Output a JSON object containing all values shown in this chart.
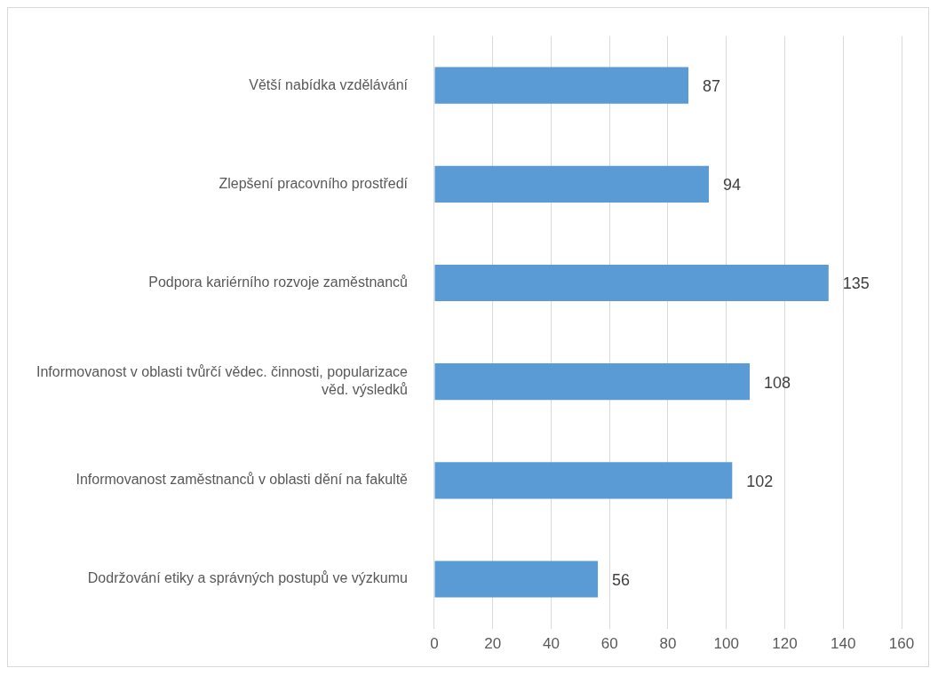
{
  "chart_data": {
    "type": "bar",
    "orientation": "horizontal",
    "categories": [
      "Větší nabídka vzdělávání",
      "Zlepšení pracovního prostředí",
      "Podpora kariérního rozvoje zaměstnanců",
      "Informovanost v oblasti tvůrčí vědec. činnosti, popularizace věd. výsledků",
      "Informovanost zaměstnanců v oblasti dění na fakultě",
      "Dodržování etiky a správných postupů ve výzkumu"
    ],
    "values": [
      87,
      94,
      135,
      108,
      102,
      56
    ],
    "color": "#5b9bd5",
    "xlim": [
      0,
      160
    ],
    "xticks": [
      0,
      20,
      40,
      60,
      80,
      100,
      120,
      140,
      160
    ],
    "grid": "x",
    "legend": false,
    "data_labels": true
  }
}
